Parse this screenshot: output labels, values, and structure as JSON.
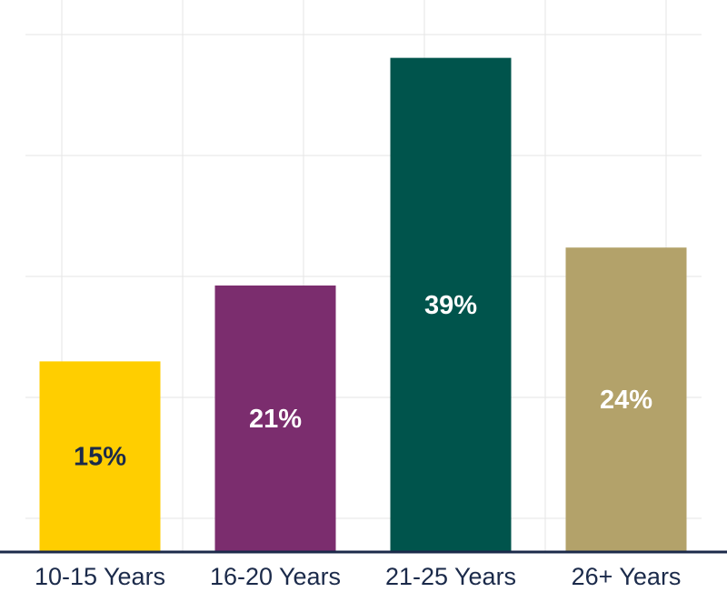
{
  "chart_data": {
    "type": "bar",
    "title": "",
    "xlabel": "",
    "ylabel": "",
    "categories": [
      "10-15 Years",
      "16-20 Years",
      "21-25 Years",
      "26+ Years"
    ],
    "values": [
      15,
      21,
      39,
      24
    ],
    "data_labels": [
      "15%",
      "21%",
      "39%",
      "24%"
    ],
    "colors": [
      "#FFCE00",
      "#7B2D6E",
      "#00544C",
      "#B3A26A"
    ],
    "label_colors": [
      "#1b2a4a",
      "#ffffff",
      "#ffffff",
      "#ffffff"
    ],
    "ylim": [
      0,
      43
    ],
    "grid": true,
    "axis_color": "#1b2a4a",
    "grid_color": "#e6e6e6"
  }
}
